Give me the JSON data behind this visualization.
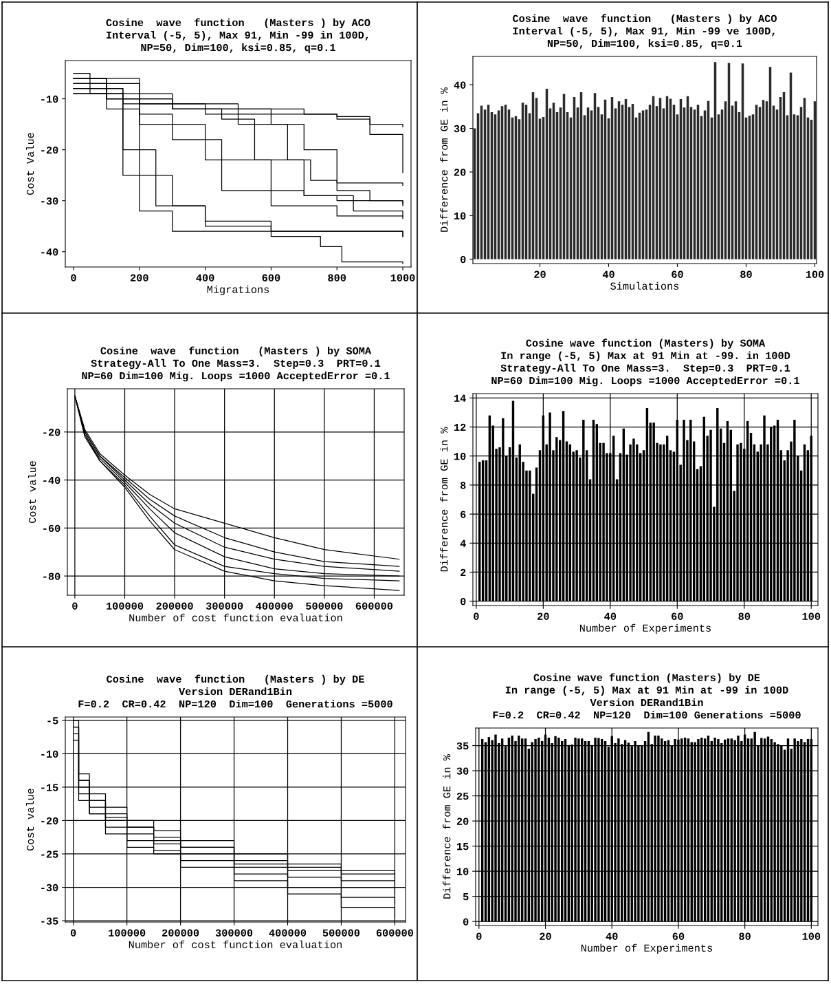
{
  "chart_data": [
    {
      "type": "step",
      "title": "Cosine  wave  function   (Masters ) by ACO\nInterval (-5, 5), Max 91, Min -99 in 100D,\nNP=50, Dim=100, ksi=0.85, q=0.1",
      "xlabel": "Migrations",
      "ylabel": "Cost Value",
      "xlim": [
        -25,
        1025
      ],
      "ylim": [
        -43,
        -2.5
      ],
      "xticks": [
        0,
        200,
        400,
        600,
        800,
        1000
      ],
      "yticks": [
        -40,
        -30,
        -20,
        -10
      ],
      "grid": false,
      "series": [
        {
          "color": "#000000",
          "x": [
            0,
            50,
            150,
            200,
            300,
            400,
            600,
            1000
          ],
          "values": [
            -5,
            -9,
            -12,
            -25,
            -31,
            -34,
            -36,
            -37
          ]
        },
        {
          "color": "#000000",
          "x": [
            0,
            100,
            200,
            300,
            450,
            600,
            800,
            1000
          ],
          "values": [
            -6,
            -10,
            -13,
            -18,
            -28,
            -31,
            -33,
            -33.5
          ]
        },
        {
          "color": "#000000",
          "x": [
            0,
            100,
            300,
            450,
            550,
            700,
            850,
            1000
          ],
          "values": [
            -7,
            -10,
            -12,
            -14,
            -22,
            -29,
            -32,
            -33
          ]
        },
        {
          "color": "#000000",
          "x": [
            0,
            150,
            400,
            600,
            700,
            800,
            900,
            1000
          ],
          "values": [
            -8,
            -11,
            -13,
            -15,
            -20,
            -28,
            -30,
            -31
          ]
        },
        {
          "color": "#000000",
          "x": [
            0,
            200,
            500,
            700,
            800,
            900,
            1000
          ],
          "values": [
            -6,
            -11,
            -12,
            -13,
            -14,
            -15,
            -15.5
          ]
        },
        {
          "color": "#000000",
          "x": [
            0,
            100,
            300,
            600,
            800,
            900,
            1000
          ],
          "values": [
            -9,
            -10,
            -12,
            -13,
            -13.5,
            -17,
            -24.5
          ]
        },
        {
          "color": "#000000",
          "x": [
            0,
            200,
            400,
            600,
            700,
            800,
            1000
          ],
          "values": [
            -7,
            -15,
            -22,
            -28,
            -29,
            -30,
            -30.5
          ]
        },
        {
          "color": "#000000",
          "x": [
            0,
            150,
            250,
            400,
            600,
            750,
            815,
            1000
          ],
          "values": [
            -8,
            -20,
            -31,
            -35,
            -37,
            -39,
            -42,
            -42.3
          ]
        },
        {
          "color": "#000000",
          "x": [
            0,
            100,
            150,
            200,
            300,
            1000
          ],
          "values": [
            -6,
            -12,
            -25,
            -32,
            -36,
            -37
          ]
        },
        {
          "color": "#000000",
          "x": [
            0,
            300,
            500,
            650,
            720,
            800,
            1000
          ],
          "values": [
            -9,
            -12,
            -15,
            -22,
            -26,
            -26.5,
            -27
          ]
        }
      ]
    },
    {
      "type": "bar",
      "title": "Cosine  wave  function   (Masters ) by ACO\nInterval (-5, 5), Max 91, Min -99 ve 100D,\nNP=50, Dim=100, ksi=0.85, q=0.1",
      "xlabel": "Simulations",
      "ylabel": "Difference from GE in %",
      "xlim": [
        0.5,
        100.5
      ],
      "ylim": [
        -1,
        46.5
      ],
      "xticks": [
        20,
        40,
        60,
        80,
        100
      ],
      "yticks": [
        0,
        10,
        20,
        30,
        40
      ],
      "grid": false,
      "series": [
        {
          "color": "#2b2b2b",
          "x": [
            1,
            2,
            3,
            4,
            5,
            6,
            7,
            8,
            9,
            10,
            11,
            12,
            13,
            14,
            15,
            16,
            17,
            18,
            19,
            20,
            21,
            22,
            23,
            24,
            25,
            26,
            27,
            28,
            29,
            30,
            31,
            32,
            33,
            34,
            35,
            36,
            37,
            38,
            39,
            40,
            41,
            42,
            43,
            44,
            45,
            46,
            47,
            48,
            49,
            50,
            51,
            52,
            53,
            54,
            55,
            56,
            57,
            58,
            59,
            60,
            61,
            62,
            63,
            64,
            65,
            66,
            67,
            68,
            69,
            70,
            71,
            72,
            73,
            74,
            75,
            76,
            77,
            78,
            79,
            80,
            81,
            82,
            83,
            84,
            85,
            86,
            87,
            88,
            89,
            90,
            91,
            92,
            93,
            94,
            95,
            96,
            97,
            98,
            99,
            100
          ],
          "values": [
            30,
            33.5,
            35.2,
            34.3,
            35.4,
            33.7,
            33.2,
            34.1,
            35.1,
            35.4,
            34.3,
            32.5,
            32.8,
            32.1,
            35.9,
            35.4,
            33.5,
            38.3,
            37,
            32.2,
            32.6,
            39.1,
            34.6,
            35.9,
            33.7,
            34.8,
            37.9,
            33.7,
            32.5,
            37.2,
            34.8,
            38.3,
            33,
            34.8,
            34.1,
            38.1,
            34.9,
            33.2,
            36.6,
            32.3,
            37.2,
            34.6,
            36.2,
            35.4,
            36.7,
            34.9,
            35.6,
            32.5,
            33.6,
            34.1,
            34.3,
            35.4,
            37.4,
            35.1,
            37,
            34.6,
            37.4,
            36.8,
            35.4,
            33.2,
            36.7,
            34.8,
            37.4,
            34.9,
            34.3,
            35.4,
            32.8,
            34.1,
            36.3,
            32.5,
            45.2,
            33.2,
            34.3,
            36.2,
            45,
            35.2,
            36.2,
            33.7,
            44.9,
            32.5,
            32.9,
            33.2,
            35.4,
            34.9,
            36.5,
            36.2,
            44.1,
            35.2,
            34.3,
            37.2,
            38.3,
            33,
            42.8,
            33.2,
            33,
            34.9,
            37,
            32.5,
            32,
            36.2
          ]
        }
      ]
    },
    {
      "type": "line",
      "title": "Cosine  wave  function   (Masters ) by SOMA\nStrategy-All To One Mass=3.  Step=0.3  PRT=0.1\nNP=60 Dim=100 Mig. Loops =1000 AcceptedError =0.1",
      "xlabel": "Number of cost function evaluation",
      "ylabel": "Cost value",
      "xlim": [
        -15000,
        660000
      ],
      "ylim": [
        -88,
        -2
      ],
      "xticks": [
        0,
        100000,
        200000,
        300000,
        400000,
        500000,
        600000
      ],
      "yticks": [
        -80,
        -60,
        -40,
        -20
      ],
      "grid": true,
      "series": [
        {
          "color": "#000000",
          "x": [
            0,
            20000,
            50000,
            100000,
            150000,
            200000,
            300000,
            400000,
            500000,
            650000
          ],
          "values": [
            -5,
            -20,
            -30,
            -40,
            -50,
            -58,
            -68,
            -73,
            -76,
            -78
          ]
        },
        {
          "color": "#000000",
          "x": [
            0,
            20000,
            50000,
            100000,
            150000,
            200000,
            300000,
            400000,
            500000,
            650000
          ],
          "values": [
            -5,
            -21,
            -31,
            -41,
            -52,
            -62,
            -72,
            -77,
            -79,
            -80
          ]
        },
        {
          "color": "#000000",
          "x": [
            0,
            20000,
            50000,
            100000,
            150000,
            200000,
            300000,
            400000,
            500000,
            650000
          ],
          "values": [
            -5,
            -19,
            -29,
            -38,
            -46,
            -52,
            -58,
            -64,
            -69,
            -73
          ]
        },
        {
          "color": "#000000",
          "x": [
            0,
            20000,
            50000,
            100000,
            150000,
            200000,
            300000,
            400000,
            500000,
            650000
          ],
          "values": [
            -5,
            -22,
            -32,
            -42,
            -55,
            -67,
            -76,
            -79,
            -81,
            -82
          ]
        },
        {
          "color": "#000000",
          "x": [
            0,
            20000,
            50000,
            100000,
            150000,
            200000,
            300000,
            400000,
            500000,
            650000
          ],
          "values": [
            -5,
            -20,
            -30,
            -39,
            -48,
            -55,
            -64,
            -70,
            -74,
            -76
          ]
        },
        {
          "color": "#000000",
          "x": [
            0,
            20000,
            50000,
            100000,
            150000,
            200000,
            300000,
            400000,
            500000,
            650000
          ],
          "values": [
            -5,
            -21,
            -32,
            -43,
            -57,
            -69,
            -78,
            -82,
            -84,
            -86
          ]
        }
      ]
    },
    {
      "type": "bar",
      "title": "Cosine wave function (Masters) by SOMA\nIn range (-5, 5) Max at 91 Min at -99. in 100D\nStrategy-All To One Mass=3.  Step=0.3  PRT=0.1\nNP=60 Dim=100 Mig. Loops =1000 AcceptedError =0.1",
      "xlabel": "Number of Experiments",
      "ylabel": "Difference from GE in %",
      "xlim": [
        -1,
        102
      ],
      "ylim": [
        -0.3,
        14.3
      ],
      "xticks": [
        0,
        20,
        40,
        60,
        80,
        100
      ],
      "yticks": [
        0,
        2,
        4,
        6,
        8,
        10,
        12,
        14
      ],
      "grid": true,
      "series": [
        {
          "color": "#000000",
          "x": [
            1,
            2,
            3,
            4,
            5,
            6,
            7,
            8,
            9,
            10,
            11,
            12,
            13,
            14,
            15,
            16,
            17,
            18,
            19,
            20,
            21,
            22,
            23,
            24,
            25,
            26,
            27,
            28,
            29,
            30,
            31,
            32,
            33,
            34,
            35,
            36,
            37,
            38,
            39,
            40,
            41,
            42,
            43,
            44,
            45,
            46,
            47,
            48,
            49,
            50,
            51,
            52,
            53,
            54,
            55,
            56,
            57,
            58,
            59,
            60,
            61,
            62,
            63,
            64,
            65,
            66,
            67,
            68,
            69,
            70,
            71,
            72,
            73,
            74,
            75,
            76,
            77,
            78,
            79,
            80,
            81,
            82,
            83,
            84,
            85,
            86,
            87,
            88,
            89,
            90,
            91,
            92,
            93,
            94,
            95,
            96,
            97,
            98,
            99,
            100
          ],
          "values": [
            9.6,
            9.7,
            9.7,
            12.8,
            12.1,
            10.5,
            10.6,
            12.6,
            10.0,
            10.6,
            13.8,
            9.9,
            10.8,
            9.6,
            9.0,
            9.0,
            7.4,
            9.2,
            10.4,
            12.8,
            10.8,
            13.0,
            10.4,
            11.3,
            11.1,
            13.1,
            11.0,
            10.8,
            10.3,
            10.4,
            9.9,
            12.5,
            10.4,
            8.4,
            12.5,
            12.2,
            10.9,
            10.9,
            10.2,
            10.2,
            11.4,
            8.4,
            10.2,
            11.9,
            10.1,
            10.8,
            11.2,
            10.8,
            10.2,
            10.4,
            13.3,
            12.3,
            12.3,
            10.9,
            10.8,
            10.8,
            11.4,
            10.4,
            10.3,
            12.5,
            9.4,
            12.5,
            11.1,
            12.5,
            11.0,
            9.1,
            9.3,
            12.7,
            11.4,
            11.8,
            6.5,
            13.3,
            11.9,
            10.9,
            12.4,
            11.8,
            7.6,
            10.8,
            10.9,
            10.5,
            12.4,
            11.6,
            10.8,
            10.3,
            10.8,
            12.8,
            10.8,
            12.0,
            12.1,
            12.5,
            10.4,
            9.7,
            10.4,
            11.0,
            12.5,
            10.0,
            9.0,
            10.8,
            10.4,
            11.4
          ]
        }
      ]
    },
    {
      "type": "step",
      "title": "Cosine  wave  function   (Masters ) by DE\nVersion DERand1Bin\nF=0.2  CR=0.42  NP=120  Dim=100  Generations =5000",
      "xlabel": "Number of cost function evaluation",
      "ylabel": "Cost value",
      "xlim": [
        -15000,
        620000
      ],
      "ylim": [
        -35.2,
        -4.5
      ],
      "xticks": [
        0,
        100000,
        200000,
        300000,
        400000,
        500000,
        600000
      ],
      "yticks": [
        -35,
        -30,
        -25,
        -20,
        -15,
        -10,
        -5
      ],
      "grid": true,
      "series": [
        {
          "color": "#000000",
          "x": [
            0,
            10000,
            30000,
            60000,
            100000,
            150000,
            200000,
            300000,
            400000,
            500000,
            600000
          ],
          "values": [
            -5,
            -14,
            -17,
            -19,
            -21,
            -22.5,
            -24,
            -26,
            -27.5,
            -29,
            -30
          ]
        },
        {
          "color": "#000000",
          "x": [
            0,
            10000,
            30000,
            60000,
            100000,
            150000,
            200000,
            300000,
            400000,
            500000,
            600000
          ],
          "values": [
            -6,
            -15,
            -18,
            -20,
            -22,
            -23.5,
            -25,
            -27,
            -28.5,
            -30,
            -31
          ]
        },
        {
          "color": "#000000",
          "x": [
            0,
            10000,
            30000,
            60000,
            100000,
            150000,
            200000,
            300000,
            400000,
            500000,
            600000
          ],
          "values": [
            -7,
            -13,
            -16,
            -18,
            -20,
            -21.5,
            -23,
            -25,
            -26.5,
            -27.5,
            -28
          ]
        },
        {
          "color": "#000000",
          "x": [
            0,
            10000,
            30000,
            60000,
            100000,
            150000,
            200000,
            300000,
            400000,
            500000,
            600000
          ],
          "values": [
            -8,
            -16,
            -19,
            -21,
            -23,
            -24.5,
            -26,
            -28,
            -30,
            -31.5,
            -32.5
          ]
        },
        {
          "color": "#000000",
          "x": [
            0,
            10000,
            30000,
            60000,
            100000,
            150000,
            200000,
            300000,
            400000,
            500000,
            600000
          ],
          "values": [
            -10,
            -17,
            -19,
            -22,
            -24,
            -25,
            -27,
            -29,
            -31,
            -33,
            -34.5
          ]
        },
        {
          "color": "#000000",
          "x": [
            0,
            10000,
            30000,
            60000,
            100000,
            150000,
            200000,
            300000,
            400000,
            500000,
            600000
          ],
          "values": [
            -6,
            -14,
            -17,
            -19.5,
            -21,
            -23,
            -24,
            -26.5,
            -27,
            -28,
            -29
          ]
        }
      ]
    },
    {
      "type": "bar",
      "title": "Cosine wave function (Masters) by DE\nIn range (-5, 5) Max at 91 Min at -99 in 100D\nVersion DERand1Bin\nF=0.2  CR=0.42  NP=120  Dim=100 Generations =5000",
      "xlabel": "Number of Experiments",
      "ylabel": "Difference from GE in %",
      "xlim": [
        -1,
        102
      ],
      "ylim": [
        -0.8,
        38.5
      ],
      "xticks": [
        0,
        20,
        40,
        60,
        80,
        100
      ],
      "yticks": [
        0,
        5,
        10,
        15,
        20,
        25,
        30,
        35
      ],
      "grid": true,
      "series": [
        {
          "color": "#000000",
          "x": [
            1,
            2,
            3,
            4,
            5,
            6,
            7,
            8,
            9,
            10,
            11,
            12,
            13,
            14,
            15,
            16,
            17,
            18,
            19,
            20,
            21,
            22,
            23,
            24,
            25,
            26,
            27,
            28,
            29,
            30,
            31,
            32,
            33,
            34,
            35,
            36,
            37,
            38,
            39,
            40,
            41,
            42,
            43,
            44,
            45,
            46,
            47,
            48,
            49,
            50,
            51,
            52,
            53,
            54,
            55,
            56,
            57,
            58,
            59,
            60,
            61,
            62,
            63,
            64,
            65,
            66,
            67,
            68,
            69,
            70,
            71,
            72,
            73,
            74,
            75,
            76,
            77,
            78,
            79,
            80,
            81,
            82,
            83,
            84,
            85,
            86,
            87,
            88,
            89,
            90,
            91,
            92,
            93,
            94,
            95,
            96,
            97,
            98,
            99,
            100
          ],
          "values": [
            36.3,
            35.7,
            36.7,
            36.1,
            37.2,
            35.5,
            36.4,
            34.9,
            36.6,
            37.0,
            35.9,
            37.0,
            36.4,
            36.4,
            34.4,
            35.7,
            36.3,
            36.6,
            35.9,
            37.2,
            36.6,
            35.5,
            36.9,
            36.6,
            35.9,
            36.3,
            35.1,
            35.2,
            36.6,
            36.4,
            36.4,
            35.9,
            35.9,
            35.1,
            36.6,
            36.5,
            36.3,
            35.9,
            34.8,
            36.9,
            35.5,
            36.4,
            35.3,
            36.1,
            35.6,
            34.9,
            35.9,
            35.0,
            35.0,
            35.9,
            37.7,
            35.3,
            37.0,
            37.0,
            36.4,
            35.9,
            36.1,
            35.0,
            36.3,
            36.2,
            36.4,
            36.6,
            36.4,
            35.7,
            35.7,
            36.3,
            36.6,
            36.4,
            37.0,
            35.9,
            36.6,
            36.3,
            35.5,
            36.2,
            36.4,
            36.4,
            36.1,
            37.0,
            35.9,
            37.2,
            36.4,
            36.4,
            37.7,
            35.0,
            36.5,
            36.4,
            36.8,
            36.3,
            35.7,
            35.3,
            35.0,
            34.2,
            36.4,
            34.4,
            36.4,
            35.9,
            36.3,
            35.7,
            36.3,
            36.3
          ]
        }
      ]
    }
  ]
}
